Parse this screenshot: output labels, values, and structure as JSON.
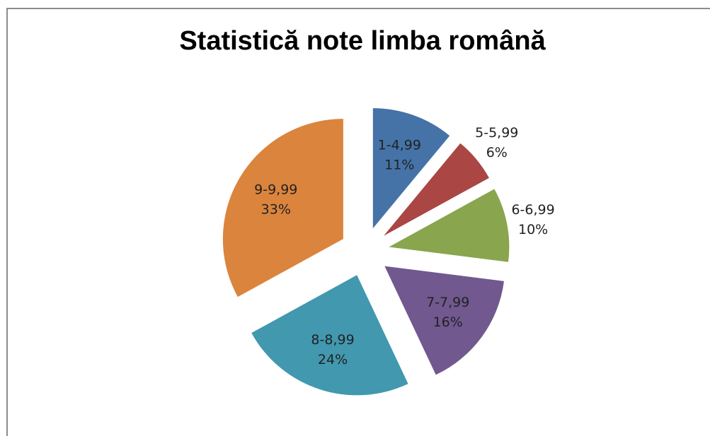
{
  "chart_data": {
    "type": "pie",
    "title": "Statistică note limba română",
    "categories": [
      "1-4,99",
      "5-5,99",
      "6-6,99",
      "7-7,99",
      "8-8,99",
      "9-9,99"
    ],
    "values": [
      11,
      6,
      10,
      16,
      24,
      33
    ],
    "value_labels": [
      "11%",
      "6%",
      "10%",
      "16%",
      "24%",
      "33%"
    ],
    "colors": [
      "#4573a7",
      "#aa4643",
      "#89a54e",
      "#71588f",
      "#4198af",
      "#db843d"
    ]
  }
}
